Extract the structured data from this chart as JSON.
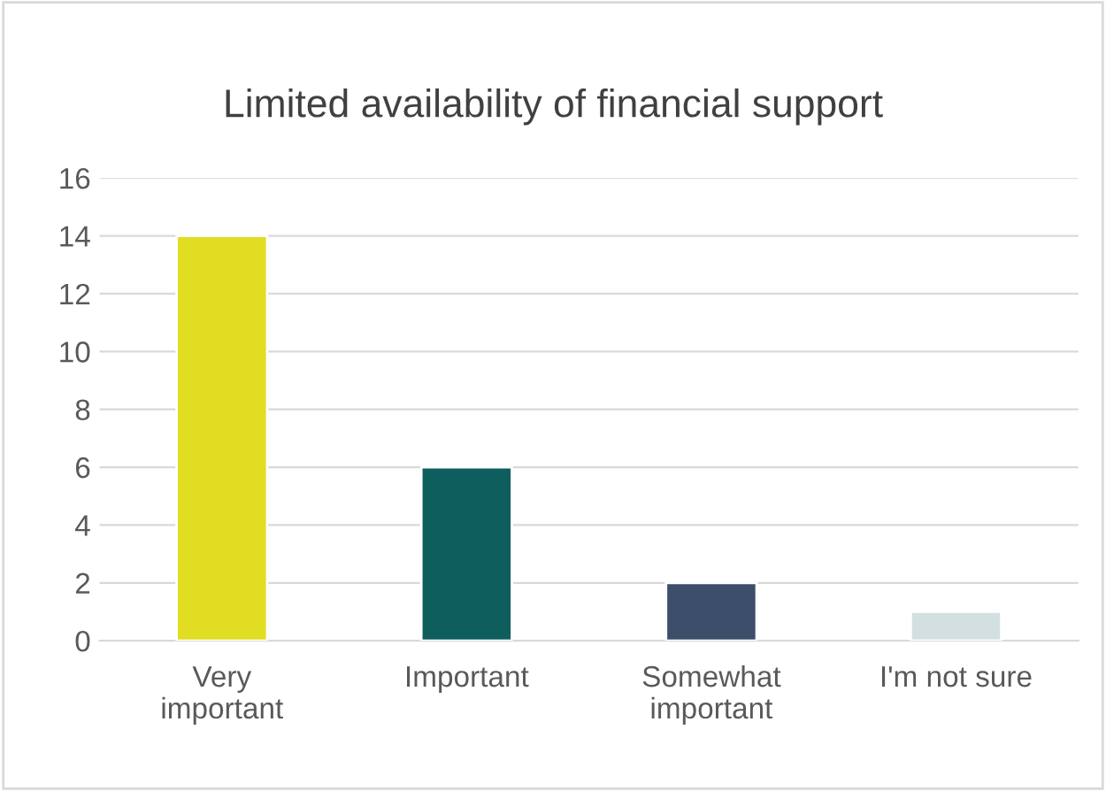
{
  "chart_data": {
    "type": "bar",
    "title": "Limited availability of financial support",
    "categories": [
      "Very\nimportant",
      "Important",
      "Somewhat\nimportant",
      "I'm not sure"
    ],
    "values": [
      14,
      6,
      2,
      1
    ],
    "colors": [
      "#e0dd22",
      "#0f5e5e",
      "#3d4e6a",
      "#d2e1e0"
    ],
    "ylim": [
      0,
      16
    ],
    "yticks": [
      0,
      2,
      4,
      6,
      8,
      10,
      12,
      14,
      16
    ],
    "grid": "y",
    "legend": false
  }
}
